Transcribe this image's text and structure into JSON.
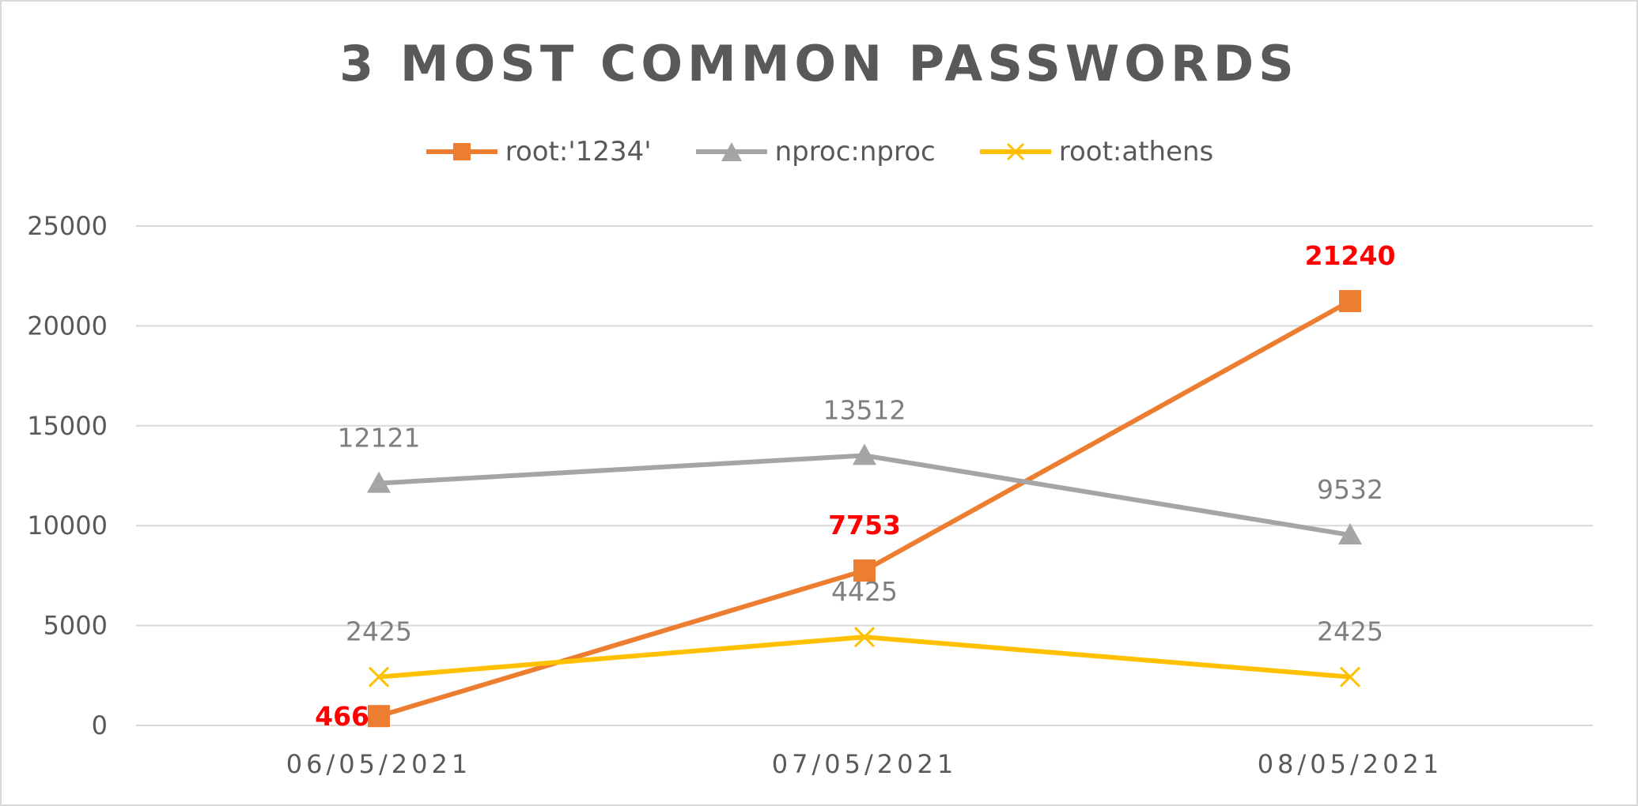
{
  "chart_data": {
    "type": "line",
    "title": "3 MOST COMMON PASSWORDS",
    "xlabel": "",
    "ylabel": "",
    "categories": [
      "06/05/2021",
      "07/05/2021",
      "08/05/2021"
    ],
    "ylim": [
      0,
      25000
    ],
    "yticks": [
      0,
      5000,
      10000,
      15000,
      20000,
      25000
    ],
    "grid": true,
    "legend_position": "top",
    "series": [
      {
        "name": "root:'1234'",
        "values": [
          466,
          7753,
          21240
        ],
        "labels": [
          "466",
          "7753",
          "21240"
        ],
        "color": "#ed7d31",
        "marker": "square",
        "label_color": "#ff0000",
        "label_bold": true
      },
      {
        "name": "nproc:nproc",
        "values": [
          12121,
          13512,
          9532
        ],
        "labels": [
          "12121",
          "13512",
          "9532"
        ],
        "color": "#a5a5a5",
        "marker": "triangle",
        "label_color": "#7f7f7f",
        "label_bold": false
      },
      {
        "name": "root:athens",
        "values": [
          2425,
          4425,
          2425
        ],
        "labels": [
          "2425",
          "4425",
          "2425"
        ],
        "color": "#ffc000",
        "marker": "x",
        "label_color": "#7f7f7f",
        "label_bold": false
      }
    ]
  }
}
